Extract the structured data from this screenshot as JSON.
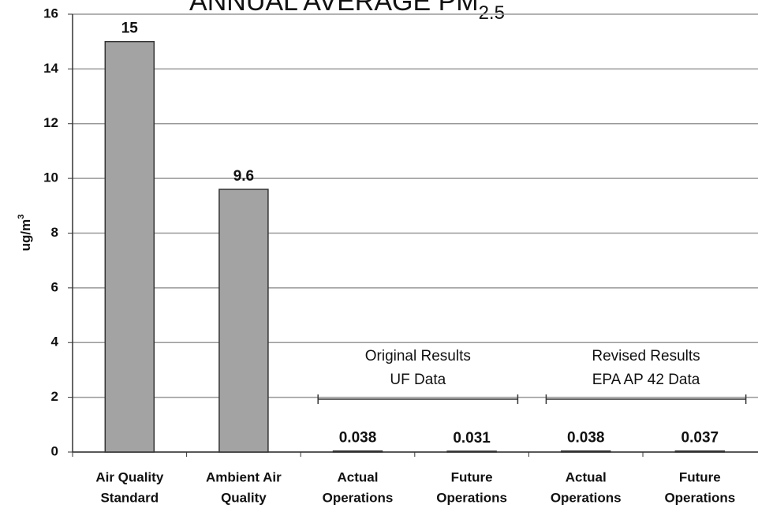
{
  "chart_data": {
    "type": "bar",
    "title": "ANNUAL AVERAGE PM",
    "title_subscript": "2.5",
    "y_label": "ug/m",
    "y_label_superscript": "3",
    "categories": [
      [
        "Air Quality",
        "Standard"
      ],
      [
        "Ambient Air",
        "Quality"
      ],
      [
        "Actual",
        "Operations"
      ],
      [
        "Future",
        "Operations"
      ],
      [
        "Actual",
        "Operations"
      ],
      [
        "Future",
        "Operations"
      ]
    ],
    "values": [
      15,
      9.6,
      0.038,
      0.031,
      0.038,
      0.037
    ],
    "color": "#a3a3a3",
    "ylim": [
      0,
      16
    ],
    "yticks": [
      0,
      2,
      4,
      6,
      8,
      10,
      12,
      14,
      16
    ],
    "grid": true,
    "annotations": [
      {
        "lines": [
          "Original Results",
          "UF Data"
        ],
        "categories": [
          2,
          3
        ]
      },
      {
        "lines": [
          "Revised Results",
          "EPA AP 42 Data"
        ],
        "categories": [
          4,
          5
        ]
      }
    ]
  }
}
